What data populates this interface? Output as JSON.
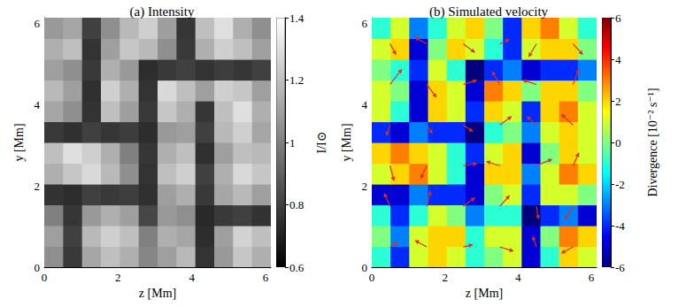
{
  "chart_data": [
    {
      "type": "heatmap",
      "title": "(a) Intensity",
      "x_label": "z [Mm]",
      "y_label": "y [Mm]",
      "xlim": [
        0,
        6.144
      ],
      "ylim": [
        0,
        6.144
      ],
      "xticks": [
        0,
        2,
        4,
        6
      ],
      "yticks": [
        0,
        2,
        4,
        6
      ],
      "x_edges": [
        0,
        0.512,
        1.024,
        1.536,
        2.048,
        2.56,
        3.072,
        3.584,
        4.096,
        4.608,
        5.12,
        5.632,
        6.144
      ],
      "y_edges": [
        0,
        0.512,
        1.024,
        1.536,
        2.048,
        2.56,
        3.072,
        3.584,
        4.096,
        4.608,
        5.12,
        5.632,
        6.144
      ],
      "cells": [
        [
          1.05,
          0.78,
          1.12,
          1.2,
          1.15,
          1.02,
          1.1,
          1.18,
          0.76,
          1.08,
          1.22,
          1.15
        ],
        [
          1.1,
          0.8,
          1.18,
          1.25,
          1.2,
          1.0,
          1.15,
          1.12,
          0.74,
          1.1,
          1.26,
          1.2
        ],
        [
          1.0,
          0.77,
          1.08,
          1.15,
          1.1,
          0.82,
          1.08,
          1.05,
          0.73,
          0.78,
          0.8,
          0.76
        ],
        [
          0.76,
          0.74,
          0.8,
          0.78,
          0.79,
          0.75,
          1.1,
          1.15,
          0.78,
          1.12,
          1.18,
          1.1
        ],
        [
          1.15,
          1.22,
          1.28,
          1.18,
          1.05,
          0.76,
          1.2,
          1.25,
          0.8,
          1.15,
          1.28,
          1.22
        ],
        [
          1.2,
          1.3,
          1.25,
          1.15,
          1.0,
          0.77,
          1.15,
          1.2,
          0.75,
          1.1,
          1.2,
          1.18
        ],
        [
          0.78,
          0.75,
          0.8,
          0.77,
          0.79,
          0.74,
          1.08,
          1.1,
          0.8,
          1.18,
          1.25,
          1.12
        ],
        [
          1.12,
          1.05,
          0.76,
          1.2,
          1.1,
          0.78,
          1.22,
          1.15,
          0.77,
          1.2,
          1.3,
          1.15
        ],
        [
          1.18,
          1.1,
          0.75,
          1.25,
          1.15,
          0.76,
          1.28,
          1.2,
          1.1,
          1.25,
          1.22,
          1.1
        ],
        [
          1.1,
          1.05,
          0.78,
          1.15,
          1.08,
          0.74,
          0.78,
          0.8,
          0.76,
          0.79,
          0.77,
          0.8
        ],
        [
          1.15,
          1.2,
          0.76,
          1.1,
          1.22,
          1.18,
          1.05,
          0.78,
          1.15,
          1.25,
          1.2,
          1.1
        ],
        [
          1.08,
          1.12,
          0.8,
          1.05,
          1.18,
          1.25,
          1.1,
          0.77,
          1.2,
          1.3,
          1.15,
          1.05
        ]
      ],
      "color": "gray",
      "colorbar": {
        "label": "I/I⊙",
        "range": [
          0.6,
          1.4
        ],
        "ticks": [
          0.6,
          0.8,
          1,
          1.2,
          1.4
        ]
      }
    },
    {
      "type": "heatmap",
      "title": "(b) Simulated velocity",
      "x_label": "z [Mm]",
      "y_label": "y [Mm]",
      "xlim": [
        0,
        6.144
      ],
      "ylim": [
        0,
        6.144
      ],
      "xticks": [
        0,
        2,
        4,
        6
      ],
      "yticks": [
        0,
        2,
        4,
        6
      ],
      "x_edges": [
        0,
        0.512,
        1.024,
        1.536,
        2.048,
        2.56,
        3.072,
        3.584,
        4.096,
        4.608,
        5.12,
        5.632,
        6.144
      ],
      "y_edges": [
        0,
        0.512,
        1.024,
        1.536,
        2.048,
        2.56,
        3.072,
        3.584,
        4.096,
        4.608,
        5.12,
        5.632,
        6.144
      ],
      "cells": [
        [
          -1,
          -4,
          1,
          2,
          1,
          -1,
          0,
          1,
          -5,
          -1,
          2,
          1
        ],
        [
          0,
          -3,
          1,
          2,
          2,
          -1,
          1,
          1,
          -5,
          0,
          3,
          2
        ],
        [
          -1,
          -4,
          -1,
          1,
          0,
          -3,
          -1,
          -1,
          -6,
          -4,
          -3,
          -5
        ],
        [
          -5,
          -5,
          -3,
          -4,
          -4,
          -5,
          0,
          1,
          -4,
          1,
          1,
          0
        ],
        [
          1,
          2,
          3,
          1,
          -1,
          -5,
          2,
          2,
          -3,
          1,
          3,
          2
        ],
        [
          2,
          3,
          2,
          1,
          -1,
          -4,
          1,
          2,
          -5,
          0,
          2,
          1
        ],
        [
          -4,
          -5,
          -3,
          -4,
          -4,
          -6,
          -1,
          0,
          -3,
          1,
          2,
          1
        ],
        [
          1,
          -1,
          -5,
          2,
          1,
          -4,
          2,
          1,
          -4,
          2,
          3,
          1
        ],
        [
          1,
          0,
          -5,
          2,
          1,
          -5,
          3,
          2,
          0,
          2,
          2,
          0
        ],
        [
          0,
          -1,
          -4,
          1,
          -1,
          -6,
          -4,
          -3,
          -5,
          -4,
          -4,
          -3
        ],
        [
          1,
          2,
          -5,
          0,
          2,
          1,
          -1,
          -4,
          1,
          2,
          2,
          0
        ],
        [
          -1,
          1,
          -3,
          -1,
          1,
          2,
          0,
          -4,
          2,
          3,
          1,
          -1
        ]
      ],
      "color": "jet",
      "colorbar": {
        "label": "Divergence [10⁻² s⁻¹]",
        "range": [
          -6,
          6
        ],
        "ticks": [
          -6,
          -4,
          -2,
          0,
          2,
          4,
          6
        ]
      },
      "vectors": [
        [
          0.5,
          0.5,
          0.4,
          0.2
        ],
        [
          1.5,
          0.5,
          -0.6,
          0.3
        ],
        [
          2.5,
          0.5,
          0.5,
          0.1
        ],
        [
          3.5,
          0.5,
          0.7,
          -0.2
        ],
        [
          4.5,
          0.5,
          -0.2,
          0.5
        ],
        [
          5.5,
          0.5,
          -0.6,
          -0.3
        ],
        [
          0.5,
          1.5,
          -0.3,
          0.6
        ],
        [
          1.5,
          1.5,
          0.2,
          0.7
        ],
        [
          2.5,
          1.5,
          0.6,
          0.4
        ],
        [
          3.5,
          1.5,
          0.5,
          0.5
        ],
        [
          4.5,
          1.5,
          0.1,
          -0.6
        ],
        [
          5.5,
          1.5,
          -0.4,
          -0.6
        ],
        [
          0.5,
          2.5,
          0.2,
          -0.7
        ],
        [
          1.5,
          2.5,
          -0.3,
          -0.6
        ],
        [
          2.5,
          2.5,
          0.7,
          0.1
        ],
        [
          3.5,
          2.5,
          -0.7,
          0.2
        ],
        [
          4.5,
          2.5,
          0.8,
          0.3
        ],
        [
          5.5,
          2.5,
          0.3,
          0.6
        ],
        [
          0.5,
          3.5,
          -0.2,
          -0.5
        ],
        [
          1.5,
          3.5,
          0.3,
          -0.4
        ],
        [
          2.5,
          3.5,
          0.5,
          -0.3
        ],
        [
          3.5,
          3.5,
          0.6,
          0.4
        ],
        [
          4.5,
          3.5,
          -0.5,
          0.4
        ],
        [
          5.5,
          3.5,
          -0.6,
          0.5
        ],
        [
          0.5,
          4.5,
          0.6,
          0.7
        ],
        [
          1.5,
          4.5,
          0.5,
          -0.6
        ],
        [
          2.5,
          4.5,
          0.7,
          0.2
        ],
        [
          3.5,
          4.5,
          -0.4,
          0.6
        ],
        [
          4.5,
          4.5,
          -0.7,
          0.2
        ],
        [
          5.5,
          4.5,
          0.3,
          0.7
        ],
        [
          0.5,
          5.5,
          0.3,
          -0.5
        ],
        [
          1.5,
          5.5,
          -0.6,
          0.3
        ],
        [
          2.5,
          5.5,
          0.6,
          -0.4
        ],
        [
          3.5,
          5.5,
          0.5,
          0.2
        ],
        [
          4.5,
          5.5,
          -0.4,
          -0.6
        ],
        [
          5.5,
          5.5,
          0.5,
          -0.5
        ]
      ]
    }
  ]
}
